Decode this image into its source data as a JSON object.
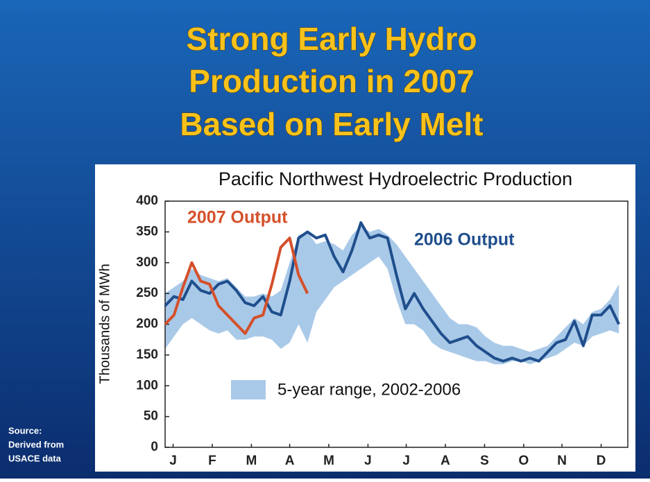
{
  "title_lines": [
    "Strong Early Hydro",
    "Production in 2007",
    "Based on Early Melt"
  ],
  "source_lines": [
    "Source:",
    "Derived from",
    "USACE data"
  ],
  "chart_data": {
    "type": "line",
    "title": "Pacific Northwest Hydroelectric Production",
    "y_label": "Thousands of MWh",
    "x": [
      0,
      1,
      2,
      3,
      4,
      5,
      6,
      7,
      8,
      9,
      10,
      11,
      12,
      13,
      14,
      15,
      16,
      17,
      18,
      19,
      20,
      21,
      22,
      23,
      24,
      25,
      26,
      27,
      28,
      29,
      30,
      31,
      32,
      33,
      34,
      35,
      36,
      37,
      38,
      39,
      40,
      41,
      42,
      43,
      44,
      45,
      46,
      47,
      48,
      49,
      50,
      51
    ],
    "xlim": [
      0,
      52
    ],
    "xticks": [
      {
        "value": 0.9,
        "label": "J"
      },
      {
        "value": 5.3,
        "label": "F"
      },
      {
        "value": 9.7,
        "label": "M"
      },
      {
        "value": 14.0,
        "label": "A"
      },
      {
        "value": 18.4,
        "label": "M"
      },
      {
        "value": 22.8,
        "label": "J"
      },
      {
        "value": 27.1,
        "label": "J"
      },
      {
        "value": 31.5,
        "label": "A"
      },
      {
        "value": 35.9,
        "label": "S"
      },
      {
        "value": 40.3,
        "label": "O"
      },
      {
        "value": 44.6,
        "label": "N"
      },
      {
        "value": 49.0,
        "label": "D"
      }
    ],
    "ylim": [
      0,
      400
    ],
    "yticks": [
      0,
      50,
      100,
      150,
      200,
      250,
      300,
      350,
      400
    ],
    "range": {
      "name": "5-year range, 2002-2006",
      "color": "#a9c9e8",
      "low": [
        160,
        180,
        200,
        210,
        200,
        190,
        185,
        190,
        175,
        175,
        180,
        180,
        175,
        160,
        170,
        200,
        170,
        220,
        240,
        260,
        270,
        280,
        290,
        300,
        310,
        290,
        240,
        200,
        200,
        190,
        170,
        160,
        155,
        150,
        145,
        140,
        140,
        135,
        135,
        140,
        140,
        135,
        140,
        145,
        150,
        160,
        170,
        165,
        180,
        185,
        190,
        185
      ],
      "high": [
        250,
        260,
        270,
        290,
        280,
        275,
        270,
        275,
        260,
        245,
        245,
        250,
        245,
        255,
        300,
        345,
        350,
        330,
        335,
        330,
        320,
        345,
        360,
        350,
        355,
        345,
        330,
        310,
        290,
        270,
        250,
        230,
        210,
        200,
        200,
        195,
        180,
        170,
        165,
        165,
        160,
        155,
        160,
        165,
        180,
        195,
        210,
        200,
        220,
        225,
        240,
        265
      ]
    },
    "series": [
      {
        "name": "2006 Output",
        "color": "#1f4e8c",
        "values": [
          230,
          245,
          240,
          270,
          255,
          250,
          265,
          270,
          255,
          235,
          230,
          245,
          220,
          215,
          270,
          340,
          350,
          340,
          345,
          310,
          285,
          320,
          365,
          340,
          345,
          340,
          280,
          225,
          250,
          225,
          205,
          185,
          170,
          175,
          180,
          165,
          155,
          145,
          140,
          145,
          140,
          145,
          140,
          155,
          170,
          175,
          205,
          165,
          215,
          215,
          230,
          200
        ]
      },
      {
        "name": "2007 Output",
        "color": "#d4502a",
        "values": [
          200,
          215,
          260,
          300,
          270,
          265,
          230,
          215,
          200,
          185,
          210,
          215,
          265,
          325,
          340,
          280,
          250,
          null,
          null,
          null,
          null,
          null,
          null,
          null,
          null,
          null,
          null,
          null,
          null,
          null,
          null,
          null,
          null,
          null,
          null,
          null,
          null,
          null,
          null,
          null,
          null,
          null,
          null,
          null,
          null,
          null,
          null,
          null,
          null,
          null,
          null,
          null
        ]
      }
    ]
  }
}
